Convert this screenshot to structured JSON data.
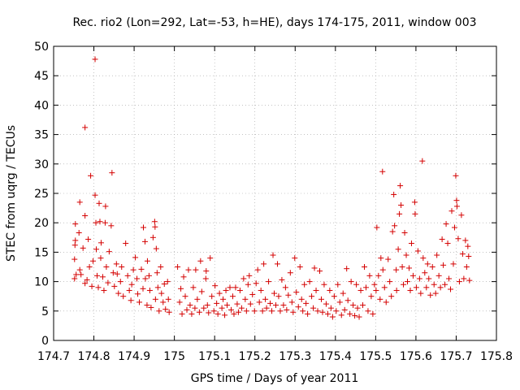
{
  "chart_data": {
    "type": "scatter",
    "title": "Rec. rio2 (Lon=292, Lat=-53, h=HE), days 174-175, 2011, window 003",
    "xlabel": "GPS time / Days of year 2011",
    "ylabel": "STEC from uqrg / TECUs",
    "xlim": [
      174.7,
      175.8
    ],
    "ylim": [
      0,
      50
    ],
    "xticks": [
      "174.7",
      "174.8",
      "174.9",
      "175",
      "175.1",
      "175.2",
      "175.3",
      "175.4",
      "175.5",
      "175.6",
      "175.7",
      "175.8"
    ],
    "yticks": [
      "0",
      "5",
      "10",
      "15",
      "20",
      "25",
      "30",
      "35",
      "40",
      "45",
      "50"
    ],
    "grid": true,
    "marker": "+",
    "color": "#d40000",
    "series": [
      {
        "name": "STEC",
        "points": [
          [
            174.752,
            10.5
          ],
          [
            174.752,
            13.8
          ],
          [
            174.753,
            16.2
          ],
          [
            174.754,
            17.0
          ],
          [
            174.754,
            19.8
          ],
          [
            174.756,
            11.2
          ],
          [
            174.763,
            18.3
          ],
          [
            174.765,
            23.5
          ],
          [
            174.765,
            12.0
          ],
          [
            174.768,
            11.2
          ],
          [
            174.773,
            15.7
          ],
          [
            174.778,
            36.2
          ],
          [
            174.778,
            21.2
          ],
          [
            174.778,
            9.7
          ],
          [
            174.783,
            10.3
          ],
          [
            174.786,
            17.2
          ],
          [
            174.789,
            12.5
          ],
          [
            174.792,
            28.0
          ],
          [
            174.795,
            9.2
          ],
          [
            174.798,
            13.5
          ],
          [
            174.803,
            47.8
          ],
          [
            174.803,
            24.7
          ],
          [
            174.805,
            20.0
          ],
          [
            174.806,
            15.5
          ],
          [
            174.808,
            11.0
          ],
          [
            174.811,
            9.0
          ],
          [
            174.813,
            23.3
          ],
          [
            174.815,
            20.2
          ],
          [
            174.817,
            14.0
          ],
          [
            174.818,
            16.6
          ],
          [
            174.822,
            10.8
          ],
          [
            174.825,
            8.5
          ],
          [
            174.828,
            20.0
          ],
          [
            174.829,
            22.8
          ],
          [
            174.831,
            12.5
          ],
          [
            174.835,
            9.8
          ],
          [
            174.838,
            15.1
          ],
          [
            174.843,
            19.5
          ],
          [
            174.845,
            28.5
          ],
          [
            174.848,
            11.5
          ],
          [
            174.851,
            9.2
          ],
          [
            174.856,
            13.0
          ],
          [
            174.858,
            11.3
          ],
          [
            174.861,
            8.0
          ],
          [
            174.866,
            10.0
          ],
          [
            174.869,
            12.5
          ],
          [
            174.873,
            7.5
          ],
          [
            174.879,
            16.5
          ],
          [
            174.884,
            11.0
          ],
          [
            174.888,
            8.5
          ],
          [
            174.892,
            6.8
          ],
          [
            174.894,
            9.5
          ],
          [
            174.898,
            12.0
          ],
          [
            174.903,
            14.1
          ],
          [
            174.907,
            10.5
          ],
          [
            174.909,
            7.9
          ],
          [
            174.913,
            6.5
          ],
          [
            174.918,
            12.1
          ],
          [
            174.922,
            8.8
          ],
          [
            174.923,
            19.2
          ],
          [
            174.927,
            16.8
          ],
          [
            174.928,
            10.5
          ],
          [
            174.932,
            6.0
          ],
          [
            174.933,
            13.5
          ],
          [
            174.937,
            11.0
          ],
          [
            174.939,
            8.5
          ],
          [
            174.942,
            5.6
          ],
          [
            174.947,
            17.5
          ],
          [
            174.951,
            20.2
          ],
          [
            174.952,
            19.3
          ],
          [
            174.953,
            7.0
          ],
          [
            174.955,
            15.6
          ],
          [
            174.957,
            11.5
          ],
          [
            174.959,
            9.0
          ],
          [
            174.962,
            5.0
          ],
          [
            174.966,
            12.5
          ],
          [
            174.968,
            8.0
          ],
          [
            174.972,
            6.5
          ],
          [
            174.975,
            9.6
          ],
          [
            174.978,
            5.3
          ],
          [
            174.983,
            10.0
          ],
          [
            174.985,
            7.0
          ],
          [
            174.987,
            4.8
          ],
          [
            175.008,
            12.5
          ],
          [
            175.013,
            6.5
          ],
          [
            175.016,
            8.8
          ],
          [
            175.019,
            4.5
          ],
          [
            175.023,
            10.8
          ],
          [
            175.027,
            7.5
          ],
          [
            175.031,
            5.2
          ],
          [
            175.035,
            12.0
          ],
          [
            175.039,
            6.0
          ],
          [
            175.043,
            4.5
          ],
          [
            175.047,
            9.0
          ],
          [
            175.051,
            5.5
          ],
          [
            175.053,
            12.0
          ],
          [
            175.057,
            7.0
          ],
          [
            175.062,
            4.8
          ],
          [
            175.065,
            13.5
          ],
          [
            175.068,
            8.3
          ],
          [
            175.073,
            5.5
          ],
          [
            175.078,
            10.5
          ],
          [
            175.079,
            11.8
          ],
          [
            175.082,
            6.0
          ],
          [
            175.085,
            4.7
          ],
          [
            175.089,
            14.0
          ],
          [
            175.093,
            7.5
          ],
          [
            175.098,
            5.0
          ],
          [
            175.101,
            9.3
          ],
          [
            175.105,
            6.3
          ],
          [
            175.108,
            4.5
          ],
          [
            175.112,
            8.0
          ],
          [
            175.118,
            5.5
          ],
          [
            175.121,
            7.0
          ],
          [
            175.125,
            4.3
          ],
          [
            175.128,
            8.5
          ],
          [
            175.131,
            6.0
          ],
          [
            175.138,
            9.0
          ],
          [
            175.141,
            5.2
          ],
          [
            175.145,
            7.5
          ],
          [
            175.148,
            4.5
          ],
          [
            175.152,
            9.0
          ],
          [
            175.156,
            6.2
          ],
          [
            175.159,
            4.8
          ],
          [
            175.163,
            8.5
          ],
          [
            175.167,
            5.5
          ],
          [
            175.172,
            10.5
          ],
          [
            175.176,
            7.0
          ],
          [
            175.179,
            5.0
          ],
          [
            175.183,
            9.5
          ],
          [
            175.186,
            11.0
          ],
          [
            175.189,
            6.2
          ],
          [
            175.194,
            7.8
          ],
          [
            175.199,
            5.0
          ],
          [
            175.203,
            9.7
          ],
          [
            175.207,
            12.0
          ],
          [
            175.211,
            6.5
          ],
          [
            175.215,
            8.5
          ],
          [
            175.219,
            5.0
          ],
          [
            175.222,
            13.0
          ],
          [
            175.226,
            7.0
          ],
          [
            175.229,
            5.5
          ],
          [
            175.234,
            10.0
          ],
          [
            175.238,
            6.3
          ],
          [
            175.242,
            5.0
          ],
          [
            175.245,
            14.5
          ],
          [
            175.248,
            8.0
          ],
          [
            175.252,
            6.0
          ],
          [
            175.256,
            13.0
          ],
          [
            175.259,
            7.5
          ],
          [
            175.263,
            5.0
          ],
          [
            175.267,
            10.3
          ],
          [
            175.271,
            6.0
          ],
          [
            175.276,
            9.0
          ],
          [
            175.279,
            5.2
          ],
          [
            175.283,
            7.7
          ],
          [
            175.288,
            11.5
          ],
          [
            175.292,
            6.5
          ],
          [
            175.295,
            4.8
          ],
          [
            175.299,
            14.0
          ],
          [
            175.303,
            8.2
          ],
          [
            175.308,
            5.7
          ],
          [
            175.312,
            12.5
          ],
          [
            175.316,
            7.0
          ],
          [
            175.319,
            5.0
          ],
          [
            175.323,
            9.5
          ],
          [
            175.327,
            6.3
          ],
          [
            175.331,
            4.5
          ],
          [
            175.336,
            10.0
          ],
          [
            175.341,
            7.5
          ],
          [
            175.345,
            5.5
          ],
          [
            175.348,
            12.3
          ],
          [
            175.352,
            8.5
          ],
          [
            175.356,
            5.0
          ],
          [
            175.361,
            11.8
          ],
          [
            175.365,
            7.0
          ],
          [
            175.368,
            4.8
          ],
          [
            175.372,
            9.5
          ],
          [
            175.377,
            6.2
          ],
          [
            175.381,
            4.5
          ],
          [
            175.386,
            8.5
          ],
          [
            175.389,
            5.5
          ],
          [
            175.393,
            4.0
          ],
          [
            175.397,
            7.5
          ],
          [
            175.402,
            5.0
          ],
          [
            175.406,
            9.5
          ],
          [
            175.411,
            6.5
          ],
          [
            175.415,
            4.3
          ],
          [
            175.419,
            8.0
          ],
          [
            175.423,
            5.2
          ],
          [
            175.428,
            12.2
          ],
          [
            175.431,
            6.8
          ],
          [
            175.436,
            4.5
          ],
          [
            175.439,
            10.0
          ],
          [
            175.444,
            6.0
          ],
          [
            175.448,
            4.2
          ],
          [
            175.452,
            9.5
          ],
          [
            175.455,
            5.5
          ],
          [
            175.459,
            4.0
          ],
          [
            175.463,
            8.5
          ],
          [
            175.468,
            6.0
          ],
          [
            175.472,
            12.5
          ],
          [
            175.476,
            9.0
          ],
          [
            175.481,
            5.0
          ],
          [
            175.485,
            11.0
          ],
          [
            175.489,
            7.5
          ],
          [
            175.493,
            4.5
          ],
          [
            175.497,
            9.5
          ],
          [
            175.501,
            8.5
          ],
          [
            175.503,
            19.2
          ],
          [
            175.507,
            11.0
          ],
          [
            175.511,
            7.0
          ],
          [
            175.513,
            14.0
          ],
          [
            175.517,
            28.7
          ],
          [
            175.518,
            12.0
          ],
          [
            175.522,
            9.0
          ],
          [
            175.526,
            6.5
          ],
          [
            175.531,
            13.8
          ],
          [
            175.535,
            10.0
          ],
          [
            175.539,
            7.5
          ],
          [
            175.542,
            18.5
          ],
          [
            175.545,
            24.8
          ],
          [
            175.547,
            19.5
          ],
          [
            175.551,
            12.0
          ],
          [
            175.552,
            8.5
          ],
          [
            175.556,
            15.5
          ],
          [
            175.559,
            21.5
          ],
          [
            175.561,
            26.3
          ],
          [
            175.563,
            23.0
          ],
          [
            175.566,
            12.5
          ],
          [
            175.569,
            9.5
          ],
          [
            175.572,
            18.3
          ],
          [
            175.576,
            14.5
          ],
          [
            175.579,
            10.0
          ],
          [
            175.583,
            12.3
          ],
          [
            175.586,
            8.5
          ],
          [
            175.589,
            16.5
          ],
          [
            175.593,
            11.0
          ],
          [
            175.597,
            23.5
          ],
          [
            175.598,
            21.5
          ],
          [
            175.601,
            9.0
          ],
          [
            175.605,
            15.2
          ],
          [
            175.609,
            10.5
          ],
          [
            175.612,
            8.0
          ],
          [
            175.616,
            30.5
          ],
          [
            175.618,
            14.0
          ],
          [
            175.622,
            11.5
          ],
          [
            175.626,
            9.0
          ],
          [
            175.629,
            13.0
          ],
          [
            175.632,
            10.5
          ],
          [
            175.636,
            7.7
          ],
          [
            175.641,
            12.5
          ],
          [
            175.645,
            9.5
          ],
          [
            175.649,
            8.0
          ],
          [
            175.652,
            14.5
          ],
          [
            175.657,
            11.0
          ],
          [
            175.661,
            9.0
          ],
          [
            175.665,
            17.2
          ],
          [
            175.668,
            12.8
          ],
          [
            175.672,
            9.5
          ],
          [
            175.675,
            19.8
          ],
          [
            175.679,
            16.5
          ],
          [
            175.682,
            10.5
          ],
          [
            175.686,
            8.7
          ],
          [
            175.689,
            22.0
          ],
          [
            175.693,
            13.0
          ],
          [
            175.696,
            19.2
          ],
          [
            175.699,
            28.0
          ],
          [
            175.701,
            23.8
          ],
          [
            175.702,
            22.8
          ],
          [
            175.705,
            17.3
          ],
          [
            175.708,
            10.0
          ],
          [
            175.713,
            21.3
          ],
          [
            175.716,
            14.7
          ],
          [
            175.719,
            10.5
          ],
          [
            175.723,
            17.0
          ],
          [
            175.726,
            12.5
          ],
          [
            175.729,
            16.0
          ],
          [
            175.731,
            14.3
          ],
          [
            175.733,
            10.2
          ]
        ]
      }
    ]
  }
}
